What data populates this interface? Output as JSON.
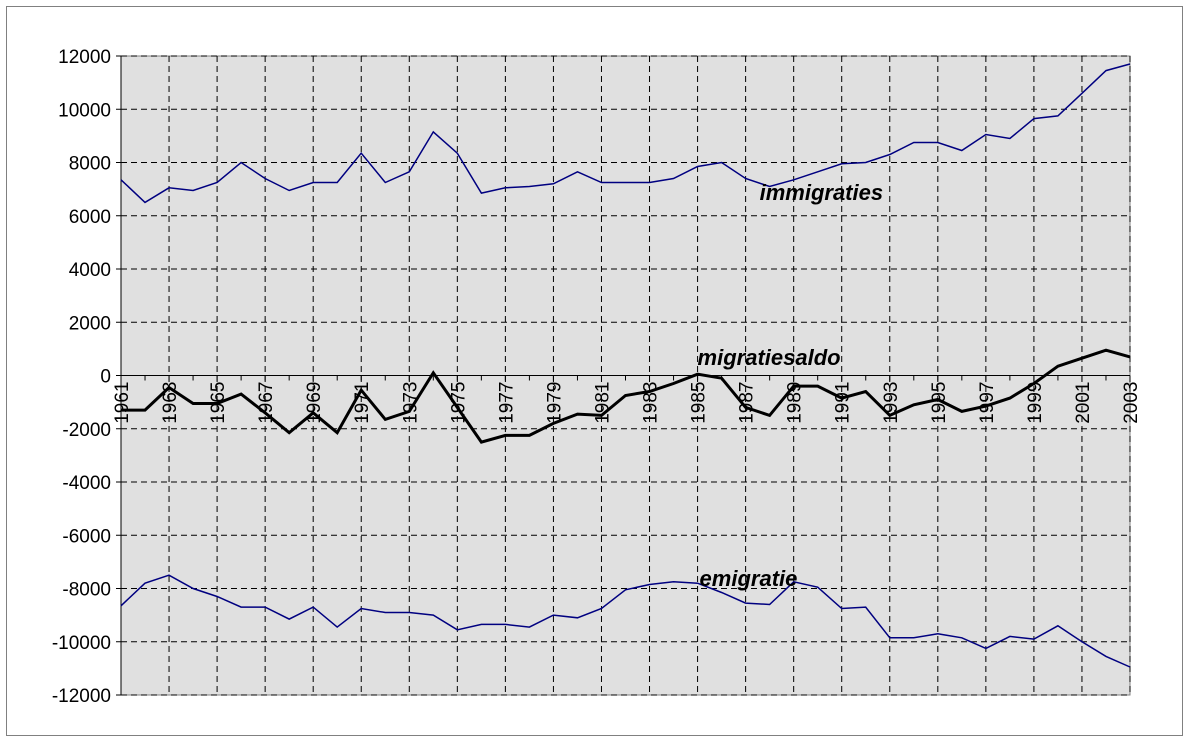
{
  "chart_data": {
    "type": "line",
    "title": "",
    "xlabel": "",
    "ylabel": "",
    "ylim": [
      -12000,
      12000
    ],
    "ytick_step": 2000,
    "grid": true,
    "plot_background": "#e0e0e0",
    "x": [
      1961,
      1962,
      1963,
      1964,
      1965,
      1966,
      1967,
      1968,
      1969,
      1970,
      1971,
      1972,
      1973,
      1974,
      1975,
      1976,
      1977,
      1978,
      1979,
      1980,
      1981,
      1982,
      1983,
      1984,
      1985,
      1986,
      1987,
      1988,
      1989,
      1990,
      1991,
      1992,
      1993,
      1994,
      1995,
      1996,
      1997,
      1998,
      1999,
      2000,
      2001,
      2002,
      2003
    ],
    "x_tick_labels": [
      "1961",
      "1963",
      "1965",
      "1967",
      "1969",
      "1971",
      "1973",
      "1975",
      "1977",
      "1979",
      "1981",
      "1983",
      "1985",
      "1987",
      "1989",
      "1991",
      "1993",
      "1995",
      "1997",
      "1999",
      "2001",
      "2003"
    ],
    "series": [
      {
        "name": "immigraties",
        "color": "#000080",
        "line_width": 1.5,
        "values": [
          7350,
          6500,
          7050,
          6950,
          7250,
          8000,
          7400,
          6950,
          7250,
          7250,
          8350,
          7250,
          7650,
          9150,
          8350,
          6850,
          7050,
          7100,
          7200,
          7650,
          7250,
          7250,
          7250,
          7400,
          7850,
          8000,
          7400,
          7100,
          7350,
          7650,
          7950,
          8000,
          8300,
          8750,
          8750,
          8450,
          9050,
          8900,
          9650,
          9750,
          10600,
          11450,
          11700
        ]
      },
      {
        "name": "migratiesaldo",
        "color": "#000000",
        "line_width": 3,
        "values": [
          -1300,
          -1300,
          -450,
          -1050,
          -1050,
          -700,
          -1400,
          -2150,
          -1400,
          -2150,
          -550,
          -1650,
          -1350,
          100,
          -1200,
          -2500,
          -2250,
          -2250,
          -1800,
          -1450,
          -1500,
          -750,
          -600,
          -300,
          50,
          -100,
          -1200,
          -1500,
          -400,
          -400,
          -850,
          -600,
          -1500,
          -1100,
          -900,
          -1350,
          -1150,
          -850,
          -300,
          350,
          650,
          950,
          700
        ]
      },
      {
        "name": "emigratie",
        "color": "#000080",
        "line_width": 1.5,
        "values": [
          -8650,
          -7800,
          -7500,
          -8000,
          -8300,
          -8700,
          -8700,
          -9150,
          -8700,
          -9450,
          -8750,
          -8900,
          -8900,
          -9000,
          -9550,
          -9350,
          -9350,
          -9450,
          -9000,
          -9100,
          -8750,
          -8050,
          -7850,
          -7750,
          -7800,
          -8150,
          -8550,
          -8600,
          -7750,
          -7950,
          -8750,
          -8700,
          -9850,
          -9850,
          -9700,
          -9850,
          -10250,
          -9800,
          -9900,
          -9400,
          -10000,
          -10550,
          -10950
        ]
      }
    ]
  }
}
